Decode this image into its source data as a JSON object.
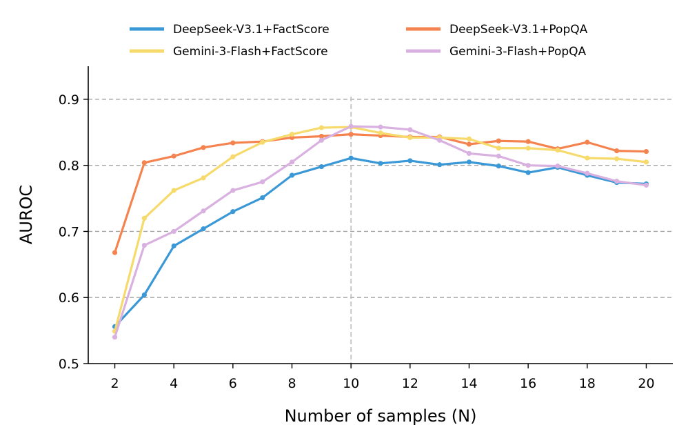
{
  "chart_data": {
    "type": "line",
    "title": "",
    "xlabel": "Number of samples (N)",
    "ylabel": "AUROC",
    "xlim": [
      1.1,
      20.9
    ],
    "ylim": [
      0.5,
      0.95
    ],
    "xticks": [
      2,
      4,
      6,
      8,
      10,
      12,
      14,
      16,
      18,
      20
    ],
    "yticks": [
      0.5,
      0.6,
      0.7,
      0.8,
      0.9
    ],
    "ytick_labels": [
      "0.5",
      "0.6",
      "0.7",
      "0.8",
      "0.9"
    ],
    "grid": "horizontal dashed",
    "reference_line_x": 10,
    "legend_position": "top (above plot), 2 columns",
    "x": [
      2,
      3,
      4,
      5,
      6,
      7,
      8,
      9,
      10,
      11,
      12,
      13,
      14,
      15,
      16,
      17,
      18,
      19,
      20
    ],
    "series": [
      {
        "name": "DeepSeek-V3.1+FactScore",
        "color": "#3b98d6",
        "values": [
          0.556,
          0.604,
          0.678,
          0.704,
          0.73,
          0.751,
          0.785,
          0.798,
          0.811,
          0.803,
          0.807,
          0.801,
          0.805,
          0.799,
          0.789,
          0.797,
          0.785,
          0.774,
          0.772
        ]
      },
      {
        "name": "DeepSeek-V3.1+PopQA",
        "color": "#f5834f",
        "values": [
          0.668,
          0.804,
          0.814,
          0.827,
          0.834,
          0.836,
          0.842,
          0.844,
          0.847,
          0.845,
          0.843,
          0.843,
          0.832,
          0.837,
          0.836,
          0.825,
          0.835,
          0.822,
          0.821
        ]
      },
      {
        "name": "Gemini-3-Flash+FactScore",
        "color": "#f6da6b",
        "values": [
          0.549,
          0.72,
          0.762,
          0.781,
          0.813,
          0.835,
          0.847,
          0.857,
          0.858,
          0.849,
          0.842,
          0.842,
          0.84,
          0.826,
          0.826,
          0.823,
          0.811,
          0.81,
          0.805
        ]
      },
      {
        "name": "Gemini-3-Flash+PopQA",
        "color": "#d9b1e0",
        "values": [
          0.54,
          0.679,
          0.7,
          0.731,
          0.762,
          0.775,
          0.805,
          0.838,
          0.859,
          0.858,
          0.854,
          0.838,
          0.818,
          0.814,
          0.8,
          0.799,
          0.788,
          0.776,
          0.77
        ]
      }
    ]
  }
}
